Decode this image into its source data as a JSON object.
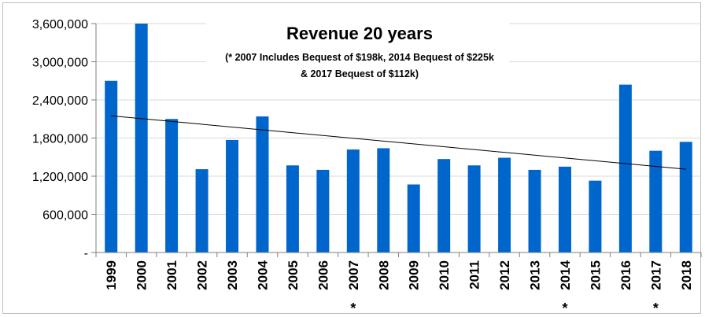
{
  "chart_data": {
    "type": "bar",
    "title": "Revenue 20 years",
    "subtitle_lines": [
      "(* 2007 Includes Bequest of $198k, 2014 Bequest of $225k",
      "& 2017 Bequest of $112k)"
    ],
    "xlabel": "",
    "ylabel": "",
    "categories": [
      "1999",
      "2000",
      "2001",
      "2002",
      "2003",
      "2004",
      "2005",
      "2006",
      "2007",
      "2008",
      "2009",
      "2010",
      "2011",
      "2012",
      "2013",
      "2014",
      "2015",
      "2016",
      "2017",
      "2018"
    ],
    "values": [
      2700000,
      3600000,
      2100000,
      1310000,
      1770000,
      2140000,
      1370000,
      1300000,
      1620000,
      1640000,
      1070000,
      1470000,
      1370000,
      1490000,
      1300000,
      1350000,
      1130000,
      2640000,
      1600000,
      1740000
    ],
    "bequest_markers": [
      "2007",
      "2014",
      "2017"
    ],
    "marker_symbol": "*",
    "ylim": [
      0,
      3600000
    ],
    "yticks": [
      0,
      600000,
      1200000,
      1800000,
      2400000,
      3000000,
      3600000
    ],
    "ytick_labels": [
      "-",
      "600,000",
      "1,200,000",
      "1,800,000",
      "2,400,000",
      "3,000,000",
      "3,600,000"
    ],
    "trendline": {
      "type": "linear",
      "start": 2150000,
      "end": 1310000
    },
    "grid": true,
    "legend": "none",
    "bar_color": "#0066CC",
    "trendline_color": "#000000",
    "grid_color": "#d9d9d9"
  }
}
